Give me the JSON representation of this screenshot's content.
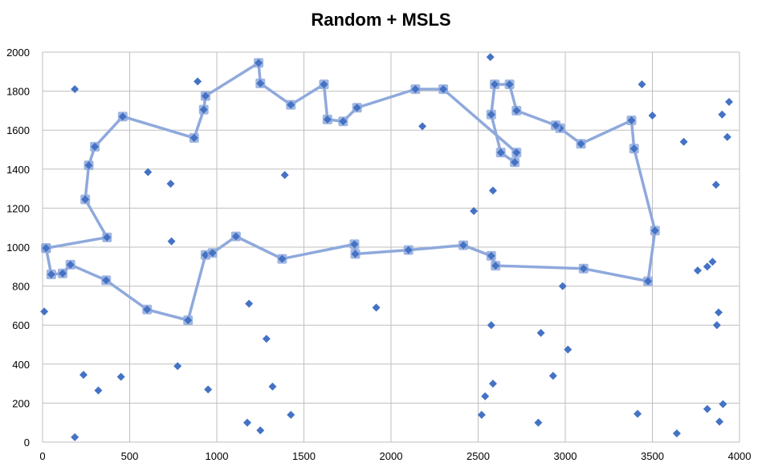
{
  "chart_data": {
    "type": "scatter",
    "title": "Random + MSLS",
    "xlabel": "",
    "ylabel": "",
    "xlim": [
      0,
      4000
    ],
    "ylim": [
      0,
      2000
    ],
    "xticks": [
      0,
      500,
      1000,
      1500,
      2000,
      2500,
      3000,
      3500,
      4000
    ],
    "yticks": [
      0,
      200,
      400,
      600,
      800,
      1000,
      1200,
      1400,
      1600,
      1800,
      2000
    ],
    "grid": true,
    "colors": {
      "points": "#4472c4",
      "route": "#8fa9dc",
      "grid": "#bfbfbf"
    },
    "series": [
      {
        "kind": "points",
        "points": [
          [
            10,
            670
          ],
          [
            185,
            1810
          ],
          [
            185,
            25
          ],
          [
            235,
            345
          ],
          [
            320,
            265
          ],
          [
            450,
            335
          ],
          [
            605,
            1385
          ],
          [
            735,
            1325
          ],
          [
            740,
            1030
          ],
          [
            775,
            390
          ],
          [
            890,
            1850
          ],
          [
            950,
            270
          ],
          [
            1175,
            100
          ],
          [
            1185,
            710
          ],
          [
            1250,
            60
          ],
          [
            1285,
            530
          ],
          [
            1320,
            285
          ],
          [
            1390,
            1370
          ],
          [
            1425,
            140
          ],
          [
            1915,
            690
          ],
          [
            2180,
            1620
          ],
          [
            2475,
            1185
          ],
          [
            2520,
            140
          ],
          [
            2540,
            235
          ],
          [
            2570,
            1975
          ],
          [
            2575,
            600
          ],
          [
            2585,
            300
          ],
          [
            2585,
            1290
          ],
          [
            2845,
            100
          ],
          [
            2860,
            560
          ],
          [
            2930,
            340
          ],
          [
            2985,
            800
          ],
          [
            3015,
            475
          ],
          [
            3440,
            1835
          ],
          [
            3500,
            1675
          ],
          [
            3415,
            145
          ],
          [
            3640,
            45
          ],
          [
            3680,
            1540
          ],
          [
            3760,
            880
          ],
          [
            3815,
            900
          ],
          [
            3815,
            170
          ],
          [
            3845,
            925
          ],
          [
            3865,
            1320
          ],
          [
            3870,
            600
          ],
          [
            3880,
            665
          ],
          [
            3885,
            105
          ],
          [
            3900,
            1680
          ],
          [
            3905,
            195
          ],
          [
            3930,
            1565
          ],
          [
            3940,
            1745
          ]
        ]
      },
      {
        "kind": "route",
        "points": [
          [
            20,
            995
          ],
          [
            50,
            860
          ],
          [
            115,
            865
          ],
          [
            160,
            910
          ],
          [
            365,
            830
          ],
          [
            600,
            680
          ],
          [
            835,
            625
          ],
          [
            935,
            960
          ],
          [
            975,
            970
          ],
          [
            1110,
            1055
          ],
          [
            1375,
            940
          ],
          [
            1790,
            1015
          ],
          [
            1795,
            965
          ],
          [
            2100,
            985
          ],
          [
            2415,
            1010
          ],
          [
            2575,
            955
          ],
          [
            2600,
            905
          ],
          [
            3105,
            890
          ],
          [
            3475,
            825
          ],
          [
            3515,
            1085
          ],
          [
            3395,
            1505
          ],
          [
            3380,
            1650
          ],
          [
            3090,
            1530
          ],
          [
            2970,
            1610
          ],
          [
            2945,
            1625
          ],
          [
            2720,
            1700
          ],
          [
            2680,
            1835
          ],
          [
            2595,
            1835
          ],
          [
            2575,
            1680
          ],
          [
            2630,
            1485
          ],
          [
            2710,
            1435
          ],
          [
            2720,
            1485
          ],
          [
            2300,
            1810
          ],
          [
            2140,
            1810
          ],
          [
            1805,
            1715
          ],
          [
            1725,
            1645
          ],
          [
            1635,
            1655
          ],
          [
            1615,
            1835
          ],
          [
            1425,
            1730
          ],
          [
            1250,
            1840
          ],
          [
            1240,
            1945
          ],
          [
            935,
            1775
          ],
          [
            925,
            1705
          ],
          [
            870,
            1560
          ],
          [
            460,
            1670
          ],
          [
            300,
            1515
          ],
          [
            265,
            1420
          ],
          [
            245,
            1245
          ],
          [
            370,
            1050
          ],
          [
            20,
            995
          ]
        ]
      }
    ]
  }
}
